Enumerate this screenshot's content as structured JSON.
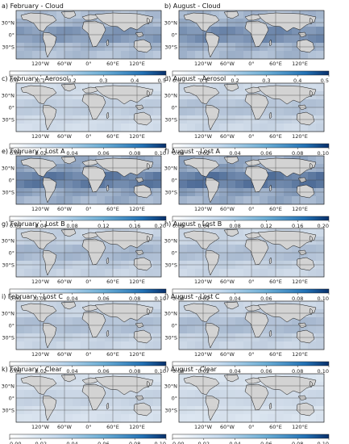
{
  "figure": {
    "columns": [
      "February",
      "August"
    ],
    "colors": {
      "ocean_low": "#e8f0f8",
      "ocean_high": "#08306b",
      "land": "#d3d3d3",
      "land_stroke": "#111111",
      "grid": "#444444"
    },
    "map_lon_ticks": [
      "120°W",
      "60°W",
      "0°",
      "60°E",
      "120°E"
    ],
    "map_lat_ticks": [
      "30°N",
      "0°",
      "30°S"
    ],
    "panels": [
      {
        "label": "a) February - Cloud",
        "intensity": 0.55
      },
      {
        "label": "b) August - Cloud",
        "intensity": 0.62
      },
      {
        "label": "c) February - Aerosol",
        "intensity": 0.22
      },
      {
        "label": "d) August - Aerosol",
        "intensity": 0.28
      },
      {
        "label": "e) February - Lost A",
        "intensity": 0.72
      },
      {
        "label": "f) August - Lost A",
        "intensity": 0.75
      },
      {
        "label": "g) February - Lost B",
        "intensity": 0.35
      },
      {
        "label": "h) August - Lost B",
        "intensity": 0.3
      },
      {
        "label": "i) February - Lost C",
        "intensity": 0.3
      },
      {
        "label": "j) August - Lost C",
        "intensity": 0.32
      },
      {
        "label": "k) February - Clear",
        "intensity": 0.18
      },
      {
        "label": "l) August - Clear",
        "intensity": 0.15
      }
    ],
    "colorbars": [
      {
        "ticks": [
          "0.0",
          "0.1",
          "0.2",
          "0.3",
          "0.4",
          "0.5"
        ]
      },
      {
        "ticks": [
          "0.00",
          "0.02",
          "0.04",
          "0.06",
          "0.08",
          "0.10"
        ]
      },
      {
        "ticks": [
          "0.00",
          "0.04",
          "0.08",
          "0.12",
          "0.16",
          "0.20"
        ]
      },
      {
        "ticks": [
          "0.00",
          "0.02",
          "0.04",
          "0.06",
          "0.08",
          "0.10"
        ]
      },
      {
        "ticks": [
          "0.00",
          "0.02",
          "0.04",
          "0.06",
          "0.08",
          "0.10"
        ]
      },
      {
        "ticks": [
          "0.00",
          "0.02",
          "0.04",
          "0.06",
          "0.08",
          "0.10"
        ]
      }
    ]
  }
}
